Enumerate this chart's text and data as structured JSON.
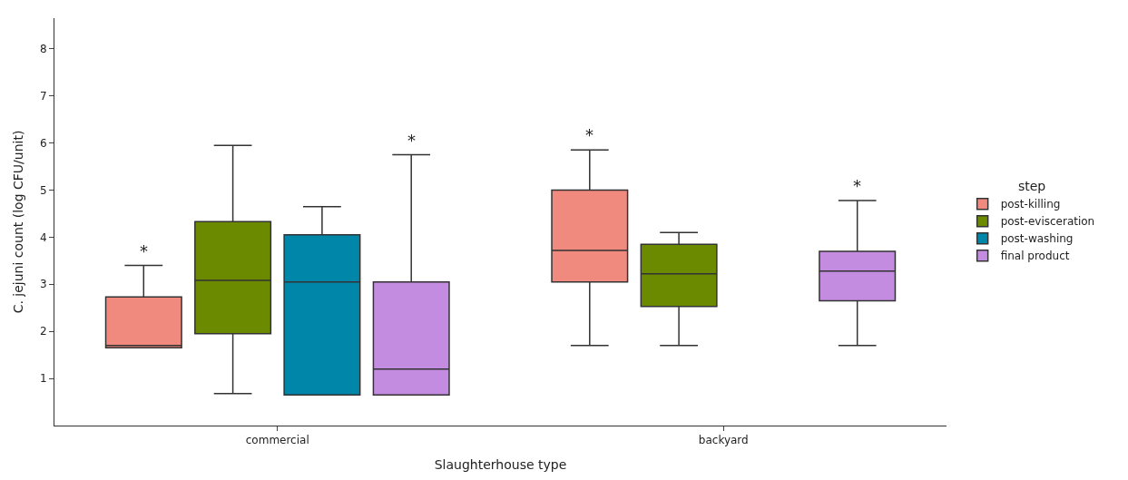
{
  "chart_data": {
    "type": "box",
    "xlabel": "Slaughterhouse type",
    "ylabel": "C. jejuni count (log CFU/unit)",
    "legend_title": "step",
    "legend": "right",
    "grid": false,
    "categories": [
      "commercial",
      "backyard"
    ],
    "ylim": [
      0,
      8.65
    ],
    "yticks": [
      1,
      2,
      3,
      4,
      5,
      6,
      7,
      8
    ],
    "series": [
      {
        "name": "post-killing",
        "color": "#f08a7e",
        "boxes": [
          {
            "low": 1.65,
            "q1": 1.65,
            "median": 1.7,
            "q3": 2.73,
            "high": 3.4
          },
          {
            "low": 1.7,
            "q1": 3.05,
            "median": 3.72,
            "q3": 5.0,
            "high": 5.85
          }
        ],
        "value_labels": [
          "*",
          "*"
        ]
      },
      {
        "name": "post-evisceration",
        "color": "#6b8a00",
        "boxes": [
          {
            "low": 0.68,
            "q1": 1.95,
            "median": 3.08,
            "q3": 4.33,
            "high": 5.95
          },
          {
            "low": 1.7,
            "q1": 2.53,
            "median": 3.22,
            "q3": 3.85,
            "high": 4.1
          }
        ],
        "value_labels": [
          null,
          null
        ]
      },
      {
        "name": "post-washing",
        "color": "#0086a8",
        "boxes": [
          {
            "low": 0.65,
            "q1": 0.65,
            "median": 3.05,
            "q3": 4.05,
            "high": 4.65
          },
          null
        ],
        "value_labels": [
          null,
          null
        ]
      },
      {
        "name": "final product",
        "color": "#c48ce0",
        "boxes": [
          {
            "low": 0.65,
            "q1": 0.65,
            "median": 1.2,
            "q3": 3.05,
            "high": 5.75
          },
          {
            "low": 1.7,
            "q1": 2.65,
            "median": 3.28,
            "q3": 3.7,
            "high": 4.78
          }
        ],
        "value_labels": [
          "*",
          "*"
        ]
      }
    ]
  }
}
